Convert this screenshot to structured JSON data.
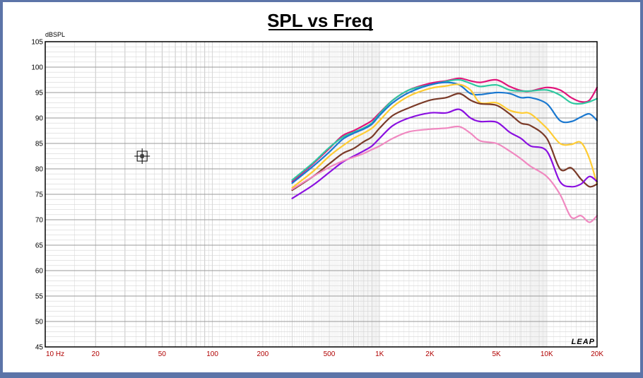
{
  "chart_data": {
    "type": "line",
    "title": "SPL vs Freq",
    "ylabel": "dBSPL",
    "xlabel": "",
    "xscale": "log",
    "xlim": [
      10,
      20000
    ],
    "ylim": [
      45,
      105
    ],
    "grid": true,
    "legend": "none",
    "x_ticks": [
      {
        "value": 10,
        "label": "10  Hz"
      },
      {
        "value": 20,
        "label": "20"
      },
      {
        "value": 50,
        "label": "50"
      },
      {
        "value": 100,
        "label": "100"
      },
      {
        "value": 200,
        "label": "200"
      },
      {
        "value": 500,
        "label": "500"
      },
      {
        "value": 1000,
        "label": "1K"
      },
      {
        "value": 2000,
        "label": "2K"
      },
      {
        "value": 5000,
        "label": "5K"
      },
      {
        "value": 10000,
        "label": "10K"
      },
      {
        "value": 20000,
        "label": "20K"
      }
    ],
    "y_ticks": [
      105,
      100,
      95,
      90,
      85,
      80,
      75,
      70,
      65,
      60,
      55,
      50,
      45
    ],
    "logo_text": "LEAP",
    "cursor_marker": {
      "x": 38,
      "y": 82.5
    },
    "x": [
      300,
      400,
      500,
      600,
      700,
      800,
      900,
      1000,
      1200,
      1500,
      2000,
      2500,
      3000,
      3500,
      4000,
      5000,
      6000,
      7000,
      8000,
      10000,
      12000,
      14000,
      16000,
      18000,
      20000
    ],
    "series": [
      {
        "color": "#e0147a",
        "values": [
          77.5,
          81,
          84,
          86.5,
          87.5,
          88.5,
          89.5,
          91,
          93.5,
          95.5,
          96.8,
          97.3,
          97.8,
          97.3,
          97,
          97.5,
          96.2,
          95.4,
          95.3,
          96,
          95.5,
          94,
          93.2,
          93.5,
          96
        ]
      },
      {
        "color": "#2ec8a0",
        "values": [
          77.8,
          81.2,
          84.2,
          86.2,
          87.2,
          88,
          89,
          90.8,
          93.5,
          95.5,
          96.5,
          97.2,
          97.5,
          96.8,
          96.2,
          96.5,
          95.5,
          95.3,
          95.3,
          95.5,
          94.5,
          93,
          92.8,
          93.2,
          93.8
        ]
      },
      {
        "color": "#1a78d0",
        "values": [
          77.2,
          80.5,
          83.3,
          85.8,
          87,
          87.8,
          88.8,
          90.5,
          93,
          95,
          96.5,
          97,
          96.5,
          94.8,
          94.6,
          95,
          94.8,
          94,
          94,
          92.8,
          89.5,
          89.3,
          90.2,
          90.8,
          89.5
        ]
      },
      {
        "color": "#ffcc33",
        "values": [
          76.3,
          79.5,
          82.5,
          84.5,
          86,
          87,
          88,
          89.5,
          92.2,
          94.3,
          95.8,
          96.3,
          96.6,
          95.5,
          93,
          93,
          91.5,
          91,
          90.8,
          88,
          85,
          84.8,
          85.2,
          82,
          77
        ]
      },
      {
        "color": "#7a3a28",
        "values": [
          75.8,
          78.5,
          81,
          83,
          84,
          85.3,
          86.3,
          88,
          90.5,
          92,
          93.5,
          94,
          94.8,
          93.5,
          92.8,
          92.5,
          90.8,
          89,
          88.5,
          86,
          80,
          80.2,
          78,
          76.5,
          77
        ]
      },
      {
        "color": "#8a10e0",
        "values": [
          74.2,
          76.8,
          79.3,
          81.3,
          82.5,
          83.5,
          84.5,
          86,
          88.5,
          90,
          91,
          91,
          91.7,
          90,
          89.3,
          89.2,
          87.2,
          86,
          84.5,
          83.5,
          77.5,
          76.5,
          77,
          78.5,
          77.5
        ]
      },
      {
        "color": "#f088c0",
        "values": [
          76,
          78.5,
          80.3,
          81.5,
          82.3,
          83,
          83.8,
          84.5,
          86,
          87.3,
          87.8,
          88,
          88.3,
          87,
          85.5,
          85,
          83.5,
          82,
          80.5,
          78.5,
          75,
          70.5,
          70.8,
          69.5,
          70.8
        ]
      }
    ]
  }
}
